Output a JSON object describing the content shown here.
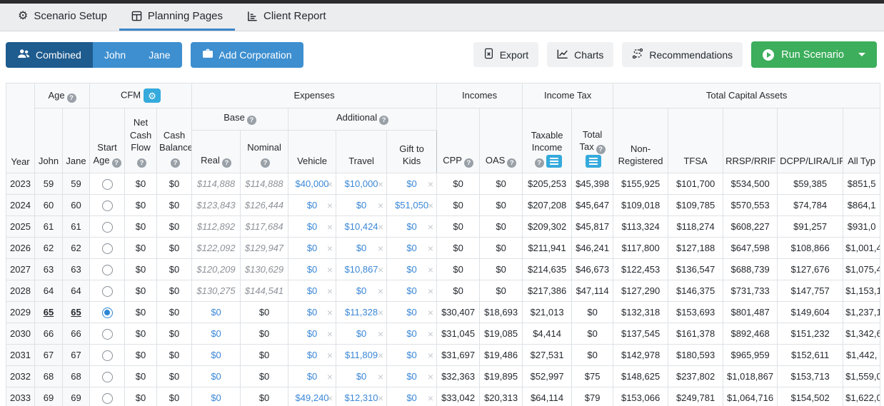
{
  "tabs": [
    {
      "label": "Scenario Setup",
      "icon": "gear-icon",
      "active": false
    },
    {
      "label": "Planning Pages",
      "icon": "table-icon",
      "active": true
    },
    {
      "label": "Client Report",
      "icon": "report-chart-icon",
      "active": false
    }
  ],
  "toolbar": {
    "combined": "Combined",
    "john": "John",
    "jane": "Jane",
    "add_corporation": "Add Corporation",
    "export": "Export",
    "charts": "Charts",
    "recommendations": "Recommendations",
    "run_scenario": "Run Scenario"
  },
  "icons": {
    "help_glyph": "?",
    "gear_glyph": "⚙",
    "close_glyph": "×"
  },
  "colors": {
    "primary_dark": "#1e5b8e",
    "primary_blue": "#3d8fd0",
    "accent_cyan": "#35aadc",
    "success_green": "#3cae5c",
    "link_blue": "#3a87d6",
    "tab_underline": "#3a87c9"
  },
  "table": {
    "groups": {
      "age": "Age",
      "cfm": "CFM",
      "expenses": "Expenses",
      "incomes": "Incomes",
      "income_tax": "Income Tax",
      "total_capital_assets": "Total Capital Assets",
      "base": "Base",
      "additional": "Additional"
    },
    "columns": {
      "year": "Year",
      "john": "John",
      "jane": "Jane",
      "start_age": "Start Age",
      "net_cash_flow": "Net Cash Flow",
      "cash_balance": "Cash Balance",
      "real": "Real",
      "nominal": "Nominal",
      "vehicle": "Vehicle",
      "travel": "Travel",
      "gift_to_kids": "Gift to Kids",
      "cpp": "CPP",
      "oas": "OAS",
      "taxable_income": "Taxable Income",
      "total_tax": "Total Tax",
      "non_registered": "Non-Registered",
      "tfsa": "TFSA",
      "rrsp_rrif": "RRSP/RRIF",
      "dcpp_lira_lif": "DCPP/LIRA/LIF",
      "all_types": "All Typ"
    },
    "rows": [
      {
        "year": "2023",
        "john": "59",
        "jane": "59",
        "selected": false,
        "emphasis": false,
        "estimates": true,
        "net_cash_flow": "$0",
        "cash_balance": "$0",
        "real": "$114,888",
        "nominal": "$114,888",
        "vehicle": "$40,000",
        "travel": "$10,000",
        "gift_to_kids": "$0",
        "cpp": "$0",
        "oas": "$0",
        "taxable_income": "$205,253",
        "total_tax": "$45,398",
        "non_registered": "$155,925",
        "tfsa": "$101,700",
        "rrsp_rrif": "$534,500",
        "dcpp_lira_lif": "$59,385",
        "all_types": "$851,5"
      },
      {
        "year": "2024",
        "john": "60",
        "jane": "60",
        "selected": false,
        "emphasis": false,
        "estimates": true,
        "net_cash_flow": "$0",
        "cash_balance": "$0",
        "real": "$123,843",
        "nominal": "$126,444",
        "vehicle": "$0",
        "travel": "$0",
        "gift_to_kids": "$51,050",
        "cpp": "$0",
        "oas": "$0",
        "taxable_income": "$207,208",
        "total_tax": "$45,647",
        "non_registered": "$109,018",
        "tfsa": "$109,785",
        "rrsp_rrif": "$570,553",
        "dcpp_lira_lif": "$74,784",
        "all_types": "$864,1"
      },
      {
        "year": "2025",
        "john": "61",
        "jane": "61",
        "selected": false,
        "emphasis": false,
        "estimates": true,
        "net_cash_flow": "$0",
        "cash_balance": "$0",
        "real": "$112,892",
        "nominal": "$117,684",
        "vehicle": "$0",
        "travel": "$10,424",
        "gift_to_kids": "$0",
        "cpp": "$0",
        "oas": "$0",
        "taxable_income": "$209,302",
        "total_tax": "$45,817",
        "non_registered": "$113,324",
        "tfsa": "$118,274",
        "rrsp_rrif": "$608,227",
        "dcpp_lira_lif": "$91,257",
        "all_types": "$931,0"
      },
      {
        "year": "2026",
        "john": "62",
        "jane": "62",
        "selected": false,
        "emphasis": false,
        "estimates": true,
        "net_cash_flow": "$0",
        "cash_balance": "$0",
        "real": "$122,092",
        "nominal": "$129,947",
        "vehicle": "$0",
        "travel": "$0",
        "gift_to_kids": "$0",
        "cpp": "$0",
        "oas": "$0",
        "taxable_income": "$211,941",
        "total_tax": "$46,241",
        "non_registered": "$117,800",
        "tfsa": "$127,188",
        "rrsp_rrif": "$647,598",
        "dcpp_lira_lif": "$108,866",
        "all_types": "$1,001,4"
      },
      {
        "year": "2027",
        "john": "63",
        "jane": "63",
        "selected": false,
        "emphasis": false,
        "estimates": true,
        "net_cash_flow": "$0",
        "cash_balance": "$0",
        "real": "$120,209",
        "nominal": "$130,629",
        "vehicle": "$0",
        "travel": "$10,867",
        "gift_to_kids": "$0",
        "cpp": "$0",
        "oas": "$0",
        "taxable_income": "$214,635",
        "total_tax": "$46,673",
        "non_registered": "$122,453",
        "tfsa": "$136,547",
        "rrsp_rrif": "$688,739",
        "dcpp_lira_lif": "$127,676",
        "all_types": "$1,075,4"
      },
      {
        "year": "2028",
        "john": "64",
        "jane": "64",
        "selected": false,
        "emphasis": false,
        "estimates": true,
        "net_cash_flow": "$0",
        "cash_balance": "$0",
        "real": "$130,275",
        "nominal": "$144,541",
        "vehicle": "$0",
        "travel": "$0",
        "gift_to_kids": "$0",
        "cpp": "$0",
        "oas": "$0",
        "taxable_income": "$217,386",
        "total_tax": "$47,114",
        "non_registered": "$127,290",
        "tfsa": "$146,375",
        "rrsp_rrif": "$731,733",
        "dcpp_lira_lif": "$147,757",
        "all_types": "$1,153,1"
      },
      {
        "year": "2029",
        "john": "65",
        "jane": "65",
        "selected": true,
        "emphasis": true,
        "estimates": false,
        "net_cash_flow": "$0",
        "cash_balance": "$0",
        "real": "$0",
        "nominal": "$0",
        "vehicle": "$0",
        "travel": "$11,328",
        "gift_to_kids": "$0",
        "cpp": "$30,407",
        "oas": "$18,693",
        "taxable_income": "$21,013",
        "total_tax": "$0",
        "non_registered": "$132,318",
        "tfsa": "$153,693",
        "rrsp_rrif": "$801,487",
        "dcpp_lira_lif": "$149,604",
        "all_types": "$1,237,1"
      },
      {
        "year": "2030",
        "john": "66",
        "jane": "66",
        "selected": false,
        "emphasis": false,
        "estimates": false,
        "net_cash_flow": "$0",
        "cash_balance": "$0",
        "real": "$0",
        "nominal": "$0",
        "vehicle": "$0",
        "travel": "$0",
        "gift_to_kids": "$0",
        "cpp": "$31,045",
        "oas": "$19,085",
        "taxable_income": "$4,414",
        "total_tax": "$0",
        "non_registered": "$137,545",
        "tfsa": "$161,378",
        "rrsp_rrif": "$892,468",
        "dcpp_lira_lif": "$151,232",
        "all_types": "$1,342,6"
      },
      {
        "year": "2031",
        "john": "67",
        "jane": "67",
        "selected": false,
        "emphasis": false,
        "estimates": false,
        "net_cash_flow": "$0",
        "cash_balance": "$0",
        "real": "$0",
        "nominal": "$0",
        "vehicle": "$0",
        "travel": "$11,809",
        "gift_to_kids": "$0",
        "cpp": "$31,697",
        "oas": "$19,486",
        "taxable_income": "$27,531",
        "total_tax": "$0",
        "non_registered": "$142,978",
        "tfsa": "$180,593",
        "rrsp_rrif": "$965,959",
        "dcpp_lira_lif": "$152,611",
        "all_types": "$1,442,"
      },
      {
        "year": "2032",
        "john": "68",
        "jane": "68",
        "selected": false,
        "emphasis": false,
        "estimates": false,
        "net_cash_flow": "$0",
        "cash_balance": "$0",
        "real": "$0",
        "nominal": "$0",
        "vehicle": "$0",
        "travel": "$0",
        "gift_to_kids": "$0",
        "cpp": "$32,363",
        "oas": "$19,895",
        "taxable_income": "$52,997",
        "total_tax": "$75",
        "non_registered": "$148,625",
        "tfsa": "$237,802",
        "rrsp_rrif": "$1,018,867",
        "dcpp_lira_lif": "$153,713",
        "all_types": "$1,559,0"
      },
      {
        "year": "2033",
        "john": "69",
        "jane": "69",
        "selected": false,
        "emphasis": false,
        "estimates": false,
        "net_cash_flow": "$0",
        "cash_balance": "$0",
        "real": "$0",
        "nominal": "$0",
        "vehicle": "$49,240",
        "travel": "$12,310",
        "gift_to_kids": "$0",
        "cpp": "$33,042",
        "oas": "$20,313",
        "taxable_income": "$64,114",
        "total_tax": "$79",
        "non_registered": "$153,066",
        "tfsa": "$249,781",
        "rrsp_rrif": "$1,064,716",
        "dcpp_lira_lif": "$154,502",
        "all_types": "$1,622,0"
      }
    ]
  }
}
